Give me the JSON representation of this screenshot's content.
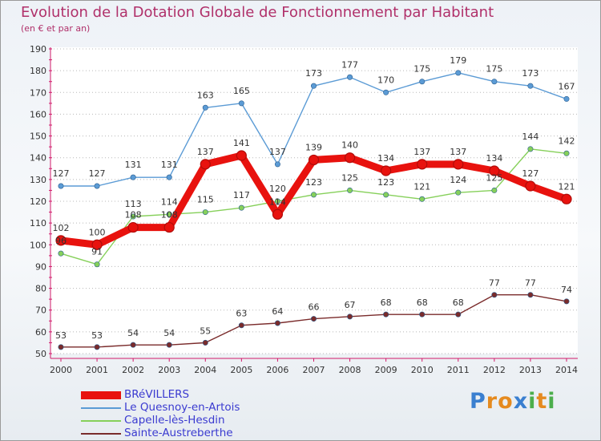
{
  "header": {
    "title": "Evolution de la Dotation Globale de Fonctionnement par Habitant",
    "subtitle": "(en € et par an)"
  },
  "brand": {
    "letters": [
      "P",
      "r",
      "o",
      "x",
      "i",
      "t",
      "i"
    ],
    "colors": [
      "#3a7fd0",
      "#e58a1f",
      "#e58a1f",
      "#3a7fd0",
      "#4cae4c",
      "#e58a1f",
      "#4cae4c"
    ]
  },
  "chart_data": {
    "type": "line",
    "title": "Evolution de la Dotation Globale de Fonctionnement par Habitant",
    "subtitle": "(en € et par an)",
    "xlabel": "",
    "ylabel": "",
    "categories": [
      "2000",
      "2001",
      "2002",
      "2003",
      "2004",
      "2005",
      "2006",
      "2007",
      "2008",
      "2009",
      "2010",
      "2011",
      "2012",
      "2013",
      "2014"
    ],
    "ylim": [
      50,
      190
    ],
    "yticks": [
      50,
      60,
      70,
      80,
      90,
      100,
      110,
      120,
      130,
      140,
      150,
      160,
      170,
      180,
      190
    ],
    "grid": "horizontal dotted",
    "legend": "bottom-left",
    "series": [
      {
        "name": "BRéVILLERS",
        "color": "#e8120e",
        "values": [
          102,
          100,
          108,
          108,
          137,
          141,
          114,
          139,
          140,
          134,
          137,
          137,
          134,
          127,
          121
        ],
        "labels": [
          "102",
          "100",
          "108",
          "108",
          "137",
          "141",
          "114",
          "139",
          "140",
          "134",
          "137",
          "137",
          "134",
          "127",
          "121"
        ]
      },
      {
        "name": "Le Quesnoy-en-Artois",
        "color": "#5b9bd5",
        "values": [
          127,
          127,
          131,
          131,
          163,
          165,
          137,
          173,
          177,
          170,
          175,
          179,
          175,
          173,
          167
        ],
        "labels": [
          "127",
          "127",
          "131",
          "131",
          "163",
          "165",
          "137",
          "173",
          "177",
          "170",
          "175",
          "179",
          "175",
          "173",
          "167"
        ]
      },
      {
        "name": "Capelle-lès-Hesdin",
        "color": "#86d05a",
        "values": [
          96,
          91,
          113,
          114,
          115,
          117,
          120,
          123,
          125,
          123,
          121,
          124,
          125,
          144,
          142
        ],
        "labels": [
          "96",
          "91",
          "113",
          "114",
          "115",
          "117",
          "120",
          "123",
          "125",
          "123",
          "121",
          "124",
          "125",
          "144",
          "142"
        ]
      },
      {
        "name": "Sainte-Austreberthe",
        "color": "#7a2b2b",
        "values": [
          53,
          53,
          54,
          54,
          55,
          63,
          64,
          66,
          67,
          68,
          68,
          68,
          77,
          77,
          74
        ],
        "labels": [
          "53",
          "53",
          "54",
          "54",
          "55",
          "63",
          "64",
          "66",
          "67",
          "68",
          "68",
          "68",
          "77",
          "77",
          "74"
        ]
      }
    ]
  }
}
